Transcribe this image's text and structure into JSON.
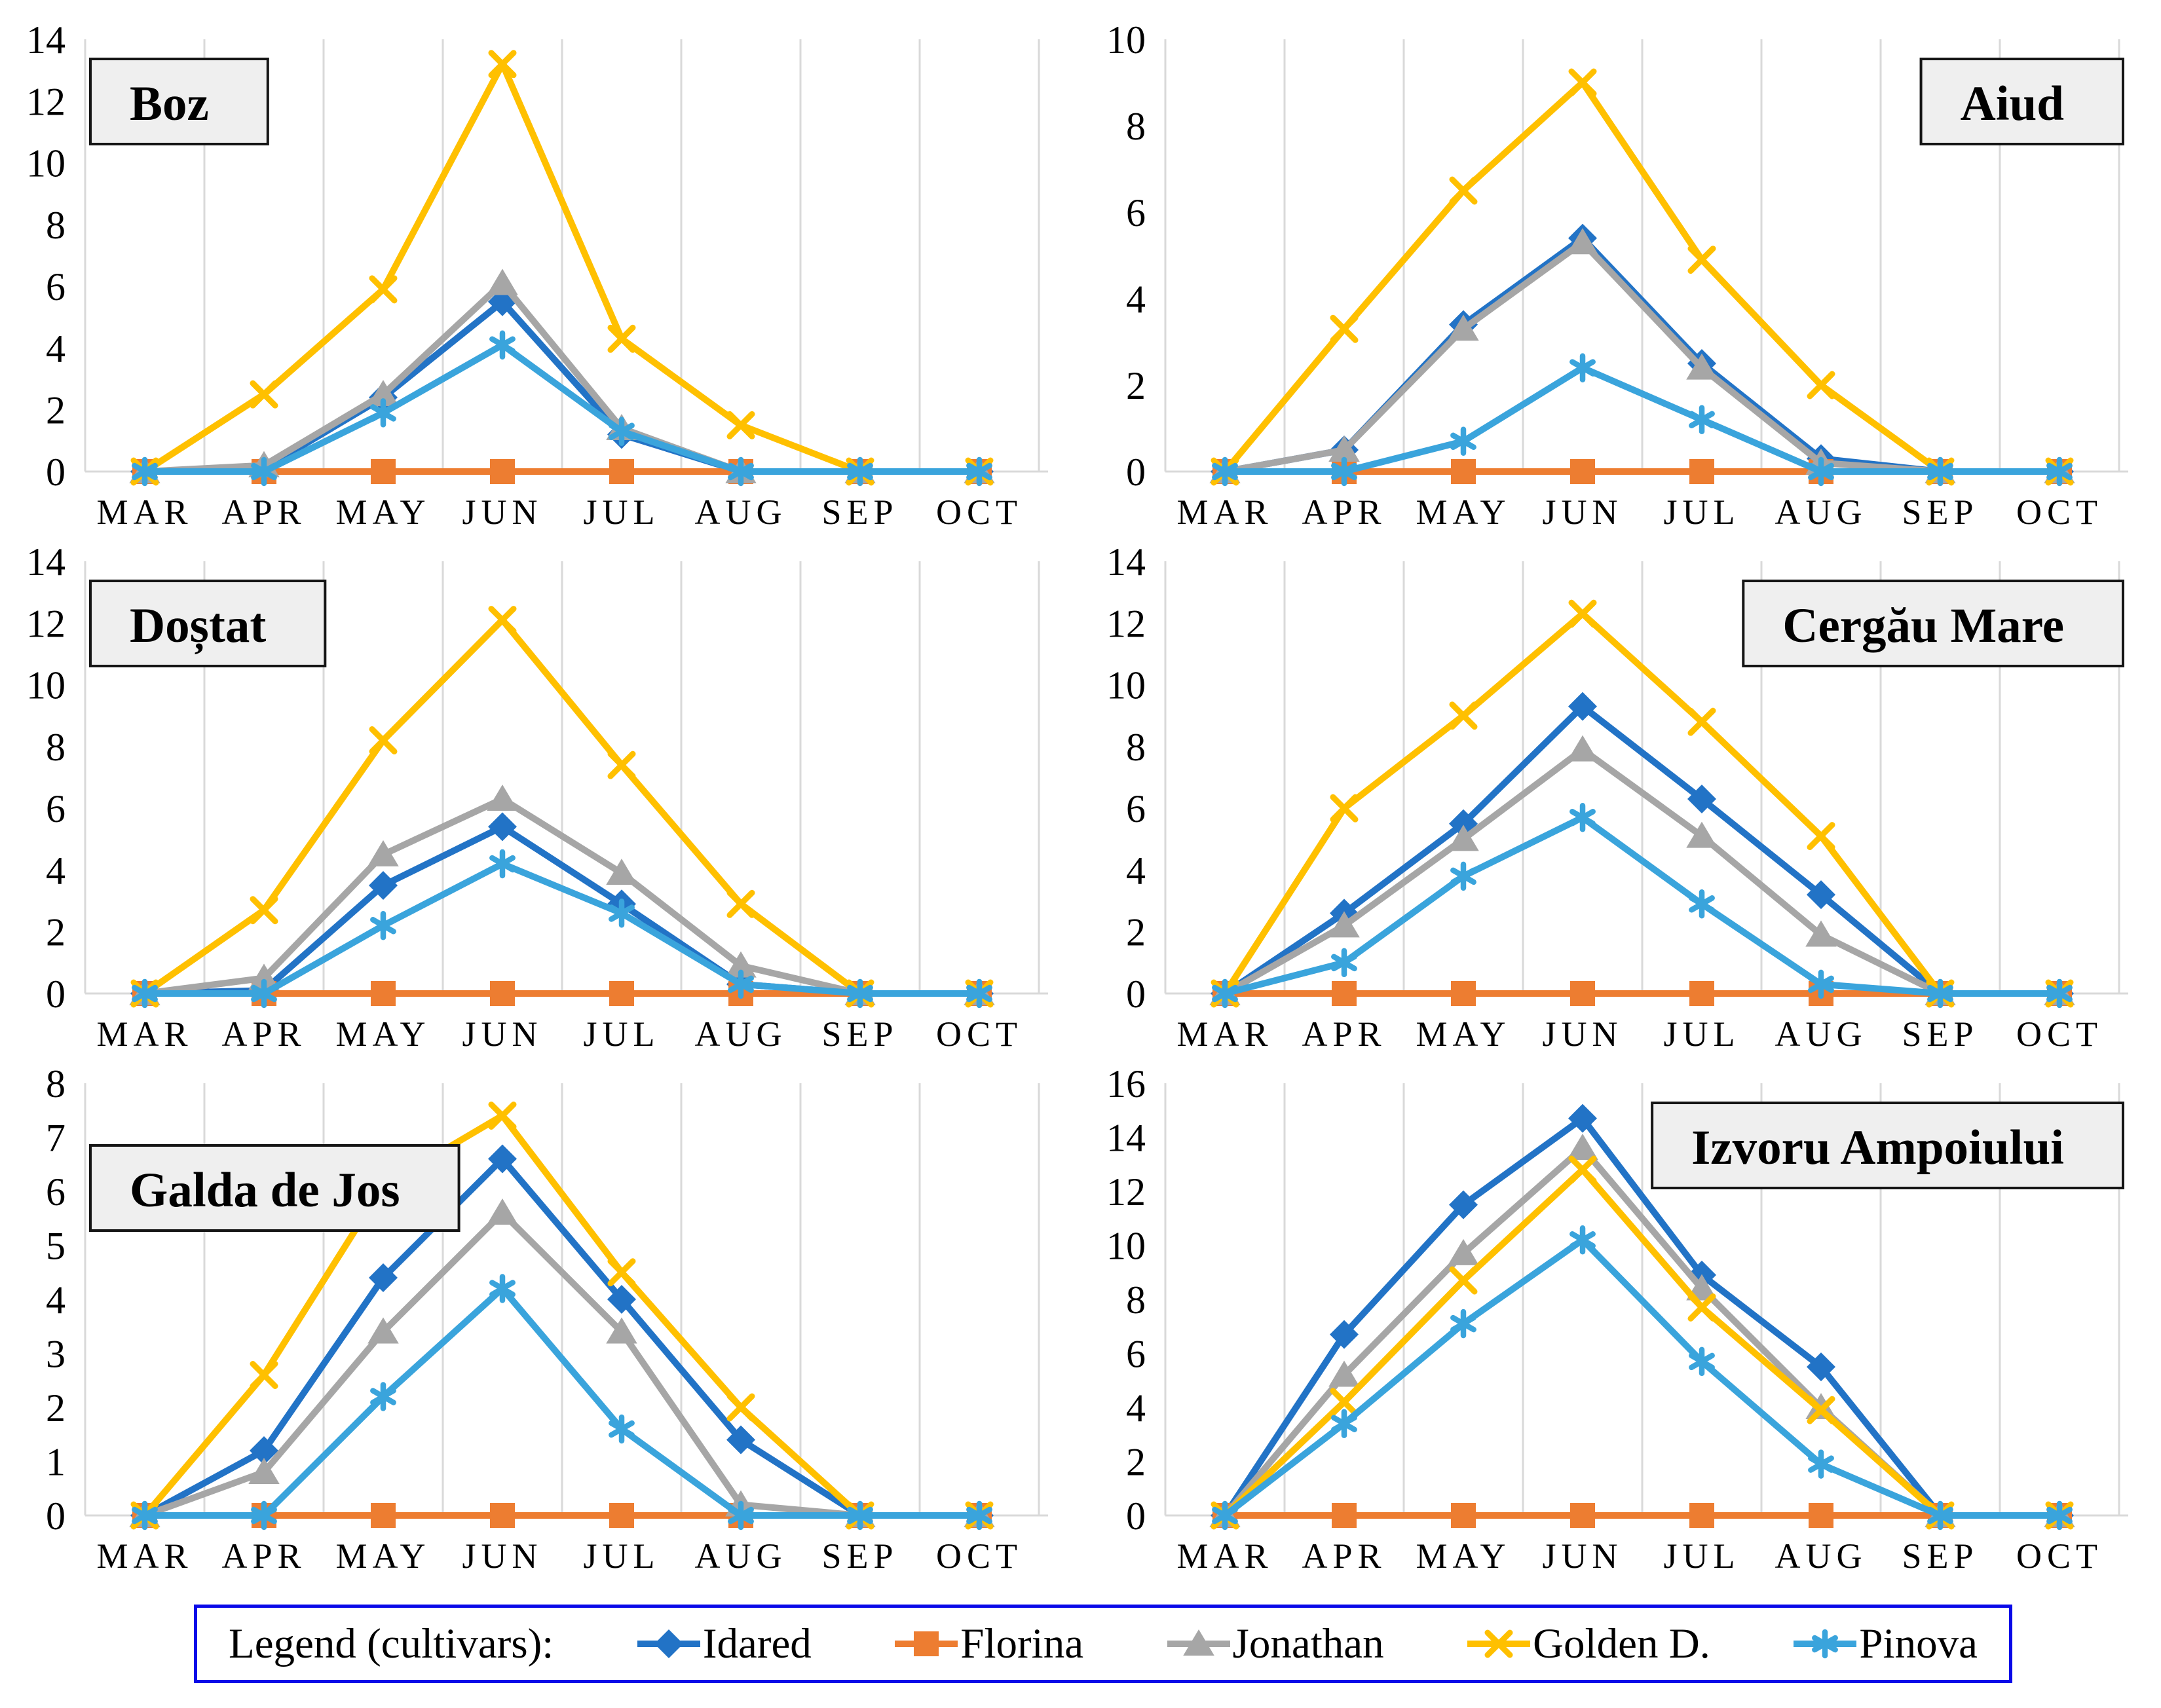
{
  "page": {
    "background": "#FFFFFF"
  },
  "colors": {
    "grid": "#D9D9D9",
    "axis_text": "#000000",
    "title_box_fill": "#EFEFEF",
    "title_box_border": "#151515",
    "legend_border": "#0A0AE8"
  },
  "legend": {
    "label": "Legend (cultivars):",
    "position": "bottom-center",
    "items": [
      {
        "name": "Idared",
        "color": "#2273C6",
        "marker": "diamond"
      },
      {
        "name": "Florina",
        "color": "#ED7D31",
        "marker": "square"
      },
      {
        "name": "Jonathan",
        "color": "#A6A6A6",
        "marker": "triangle"
      },
      {
        "name": "Golden D.",
        "color": "#FFC000",
        "marker": "x"
      },
      {
        "name": "Pinova",
        "color": "#3AA4DC",
        "marker": "asterisk"
      }
    ]
  },
  "chart_data": [
    {
      "type": "line",
      "title": "Boz",
      "title_pos": "top-left",
      "xlabel": "",
      "ylabel": "",
      "ylim": [
        0,
        14
      ],
      "ytick_step": 2,
      "grid": "vertical-only",
      "categories": [
        "MAR",
        "APR",
        "MAY",
        "JUN",
        "JUL",
        "AUG",
        "SEP",
        "OCT"
      ],
      "series": [
        {
          "name": "Idared",
          "values": [
            0,
            0.1,
            2.4,
            5.5,
            1.2,
            0,
            0,
            0
          ]
        },
        {
          "name": "Florina",
          "values": [
            0,
            0,
            0,
            0,
            0,
            0,
            0,
            0
          ]
        },
        {
          "name": "Jonathan",
          "values": [
            0,
            0.2,
            2.5,
            6.1,
            1.4,
            0,
            0,
            0
          ]
        },
        {
          "name": "Golden D.",
          "values": [
            0,
            2.5,
            5.9,
            13.2,
            4.3,
            1.5,
            0,
            0
          ]
        },
        {
          "name": "Pinova",
          "values": [
            0,
            0,
            1.9,
            4.1,
            1.3,
            0,
            0,
            0
          ]
        }
      ]
    },
    {
      "type": "line",
      "title": "Aiud",
      "title_pos": "top-right",
      "xlabel": "",
      "ylabel": "",
      "ylim": [
        0,
        10
      ],
      "ytick_step": 2,
      "grid": "vertical-only",
      "categories": [
        "MAR",
        "APR",
        "MAY",
        "JUN",
        "JUL",
        "AUG",
        "SEP",
        "OCT"
      ],
      "series": [
        {
          "name": "Idared",
          "values": [
            0,
            0.5,
            3.4,
            5.4,
            2.5,
            0.3,
            0,
            0
          ]
        },
        {
          "name": "Florina",
          "values": [
            0,
            0,
            0,
            0,
            0,
            0,
            0,
            0
          ]
        },
        {
          "name": "Jonathan",
          "values": [
            0,
            0.5,
            3.3,
            5.3,
            2.4,
            0.2,
            0,
            0
          ]
        },
        {
          "name": "Golden D.",
          "values": [
            0,
            3.3,
            6.5,
            9.0,
            4.9,
            2.0,
            0,
            0
          ]
        },
        {
          "name": "Pinova",
          "values": [
            0,
            0,
            0.7,
            2.4,
            1.2,
            0,
            0,
            0
          ]
        }
      ]
    },
    {
      "type": "line",
      "title": "Doștat",
      "title_pos": "top-left",
      "xlabel": "",
      "ylabel": "",
      "ylim": [
        0,
        14
      ],
      "ytick_step": 2,
      "grid": "vertical-only",
      "categories": [
        "MAR",
        "APR",
        "MAY",
        "JUN",
        "JUL",
        "AUG",
        "SEP",
        "OCT"
      ],
      "series": [
        {
          "name": "Idared",
          "values": [
            0,
            0.1,
            3.5,
            5.4,
            2.9,
            0.3,
            0,
            0
          ]
        },
        {
          "name": "Florina",
          "values": [
            0,
            0,
            0,
            0,
            0,
            0,
            0,
            0
          ]
        },
        {
          "name": "Jonathan",
          "values": [
            0,
            0.5,
            4.5,
            6.3,
            3.9,
            0.9,
            0,
            0
          ]
        },
        {
          "name": "Golden D.",
          "values": [
            0,
            2.7,
            8.2,
            12.1,
            7.4,
            2.9,
            0,
            0
          ]
        },
        {
          "name": "Pinova",
          "values": [
            0,
            0,
            2.2,
            4.2,
            2.6,
            0.3,
            0,
            0
          ]
        }
      ]
    },
    {
      "type": "line",
      "title": "Cergău Mare",
      "title_pos": "top-right",
      "xlabel": "",
      "ylabel": "",
      "ylim": [
        0,
        14
      ],
      "ytick_step": 2,
      "grid": "vertical-only",
      "categories": [
        "MAR",
        "APR",
        "MAY",
        "JUN",
        "JUL",
        "AUG",
        "SEP",
        "OCT"
      ],
      "series": [
        {
          "name": "Idared",
          "values": [
            0,
            2.6,
            5.5,
            9.3,
            6.3,
            3.2,
            0,
            0
          ]
        },
        {
          "name": "Florina",
          "values": [
            0,
            0,
            0,
            0,
            0,
            0,
            0,
            0
          ]
        },
        {
          "name": "Jonathan",
          "values": [
            0,
            2.2,
            5.0,
            7.9,
            5.1,
            1.9,
            0,
            0
          ]
        },
        {
          "name": "Golden D.",
          "values": [
            0,
            6.0,
            9.0,
            12.3,
            8.8,
            5.1,
            0,
            0
          ]
        },
        {
          "name": "Pinova",
          "values": [
            0,
            1.0,
            3.8,
            5.7,
            2.9,
            0.3,
            0,
            0
          ]
        }
      ]
    },
    {
      "type": "line",
      "title": "Galda de Jos",
      "title_pos": "left-middle",
      "xlabel": "",
      "ylabel": "",
      "ylim": [
        0,
        8
      ],
      "ytick_step": 1,
      "grid": "vertical-only",
      "categories": [
        "MAR",
        "APR",
        "MAY",
        "JUN",
        "JUL",
        "AUG",
        "SEP",
        "OCT"
      ],
      "series": [
        {
          "name": "Idared",
          "values": [
            0,
            1.2,
            4.4,
            6.6,
            4.0,
            1.4,
            0,
            0
          ]
        },
        {
          "name": "Florina",
          "values": [
            0,
            0,
            0,
            0,
            0,
            0,
            0,
            0
          ]
        },
        {
          "name": "Jonathan",
          "values": [
            0,
            0.8,
            3.4,
            5.6,
            3.4,
            0.2,
            0,
            0
          ]
        },
        {
          "name": "Golden D.",
          "values": [
            0,
            2.6,
            6.1,
            7.4,
            4.5,
            2.0,
            0,
            0
          ]
        },
        {
          "name": "Pinova",
          "values": [
            0,
            0,
            2.2,
            4.2,
            1.6,
            0,
            0,
            0
          ]
        }
      ]
    },
    {
      "type": "line",
      "title": "Izvoru Ampoiului",
      "title_pos": "top-right",
      "xlabel": "",
      "ylabel": "",
      "ylim": [
        0,
        16
      ],
      "ytick_step": 2,
      "grid": "vertical-only",
      "categories": [
        "MAR",
        "APR",
        "MAY",
        "JUN",
        "JUL",
        "AUG",
        "SEP",
        "OCT"
      ],
      "series": [
        {
          "name": "Idared",
          "values": [
            0,
            6.7,
            11.5,
            14.7,
            8.9,
            5.5,
            0,
            0
          ]
        },
        {
          "name": "Florina",
          "values": [
            0,
            0,
            0,
            0,
            0,
            0,
            0,
            0
          ]
        },
        {
          "name": "Jonathan",
          "values": [
            0,
            5.2,
            9.7,
            13.6,
            8.4,
            4.0,
            0,
            0
          ]
        },
        {
          "name": "Golden D.",
          "values": [
            0,
            4.2,
            8.7,
            12.8,
            7.7,
            3.9,
            0,
            0
          ]
        },
        {
          "name": "Pinova",
          "values": [
            0,
            3.4,
            7.1,
            10.2,
            5.7,
            1.9,
            0,
            0
          ]
        }
      ]
    }
  ]
}
